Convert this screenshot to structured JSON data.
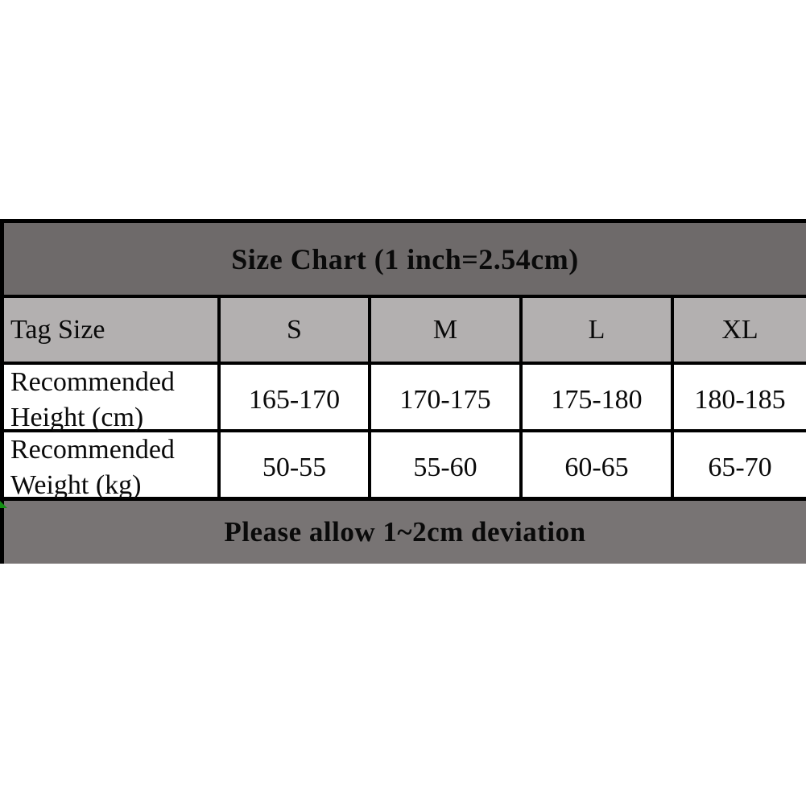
{
  "chart_data": {
    "type": "table",
    "title": "Size Chart (1 inch=2.54cm)",
    "columns": [
      "Tag Size",
      "S",
      "M",
      "L",
      "XL"
    ],
    "rows": [
      [
        "Recommended Height (cm)",
        "165-170",
        "170-175",
        "175-180",
        "180-185"
      ],
      [
        "Recommended Weight (kg)",
        "50-55",
        "55-60",
        "60-65",
        "65-70"
      ]
    ],
    "note": "Please allow 1~2cm deviation"
  },
  "colors": {
    "title_bg": "#6e6a6a",
    "header_bg": "#b3b0b0",
    "footer_bg": "#787474",
    "border": "#000000",
    "marker": "#149014"
  }
}
